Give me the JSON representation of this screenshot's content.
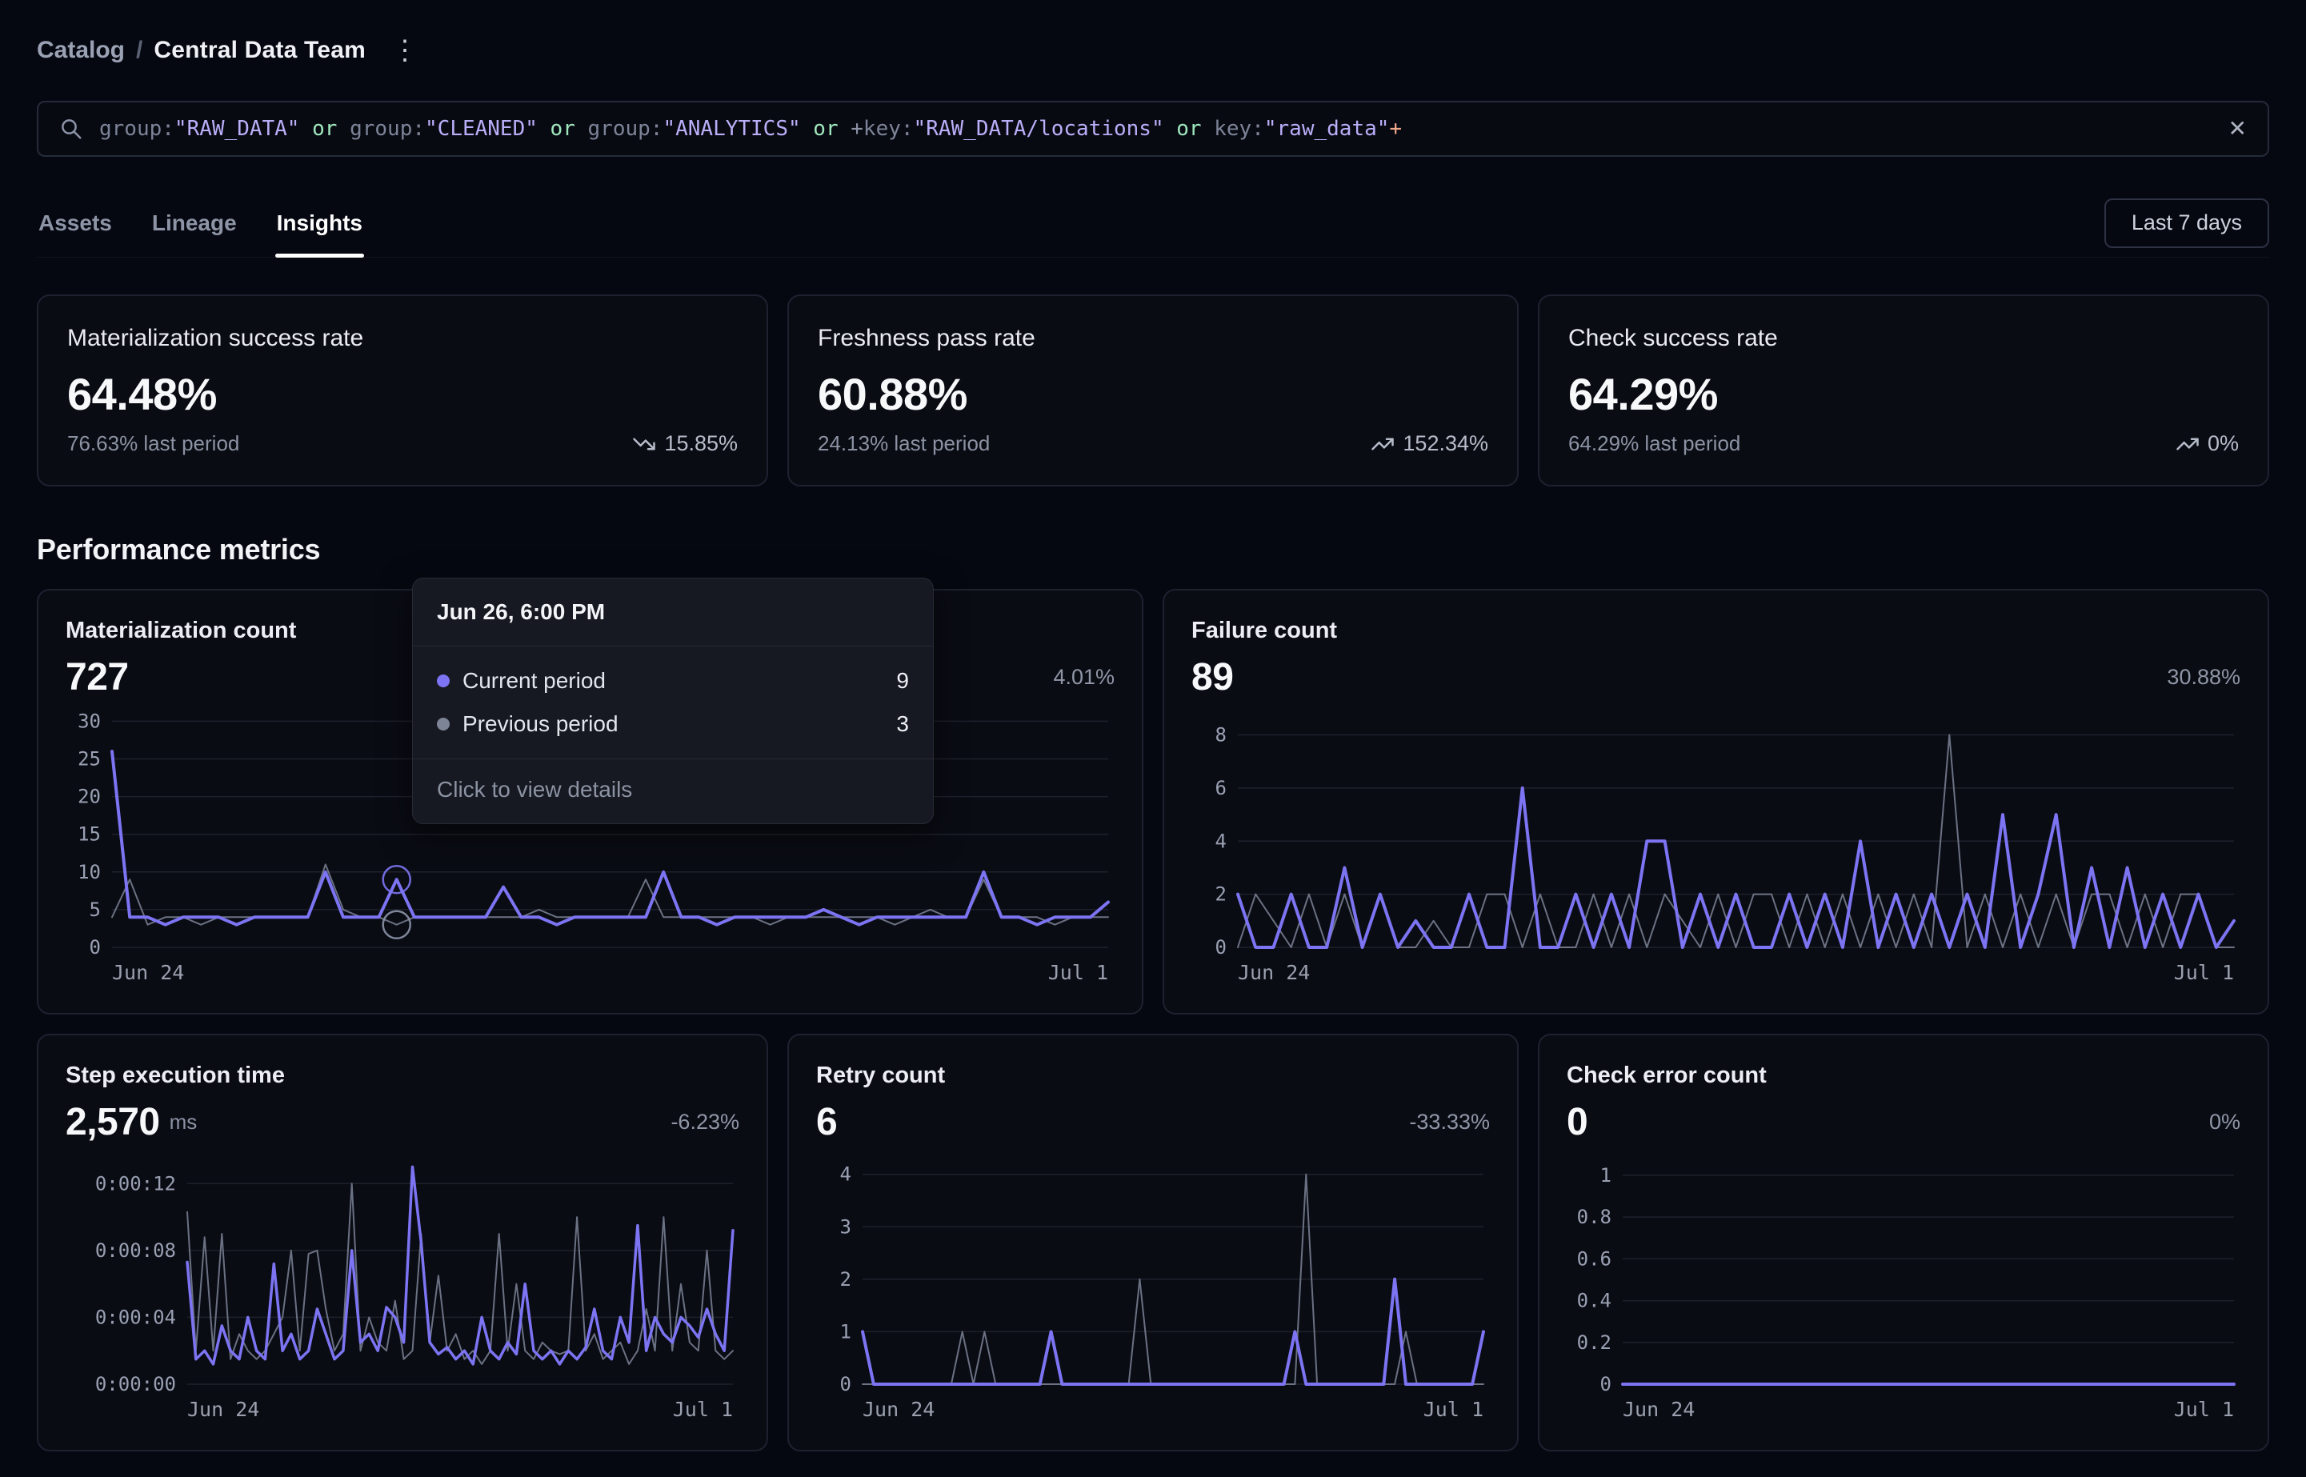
{
  "colors": {
    "bg": "#060811",
    "card": "#0a0c14",
    "card-border": "#1d2130",
    "purple": "#7c74f2",
    "grayline": "#8b93a7",
    "tooltip-bg": "#171922"
  },
  "icons": {
    "kebab": "⋮",
    "clear": "✕"
  },
  "breadcrumb": {
    "section": "Catalog",
    "separator": "/",
    "current": "Central Data Team"
  },
  "search": {
    "tokens": [
      {
        "text": "group:",
        "type": "field"
      },
      {
        "text": "\"RAW_DATA\"",
        "type": "string"
      },
      {
        "text": " or ",
        "type": "op"
      },
      {
        "text": "group:",
        "type": "field"
      },
      {
        "text": "\"CLEANED\"",
        "type": "string"
      },
      {
        "text": " or ",
        "type": "op"
      },
      {
        "text": "group:",
        "type": "field"
      },
      {
        "text": "\"ANALYTICS\"",
        "type": "string"
      },
      {
        "text": " or ",
        "type": "op"
      },
      {
        "text": "+",
        "type": "plus"
      },
      {
        "text": "key:",
        "type": "field"
      },
      {
        "text": "\"RAW_DATA/locations\"",
        "type": "string"
      },
      {
        "text": " or ",
        "type": "op"
      },
      {
        "text": "key:",
        "type": "field"
      },
      {
        "text": "\"raw_data\"",
        "type": "string"
      },
      {
        "text": "+",
        "type": "plus_end"
      }
    ]
  },
  "tabs": [
    {
      "label": "Assets",
      "active": false
    },
    {
      "label": "Lineage",
      "active": false
    },
    {
      "label": "Insights",
      "active": true
    }
  ],
  "time_range": {
    "label": "Last 7 days"
  },
  "kpi_cards": [
    {
      "title": "Materialization success rate",
      "value": "64.48%",
      "last_period": "76.63% last period",
      "delta": "15.85%",
      "trend": "down"
    },
    {
      "title": "Freshness pass rate",
      "value": "60.88%",
      "last_period": "24.13% last period",
      "delta": "152.34%",
      "trend": "up"
    },
    {
      "title": "Check success rate",
      "value": "64.29%",
      "last_period": "64.29% last period",
      "delta": "0%",
      "trend": "up"
    }
  ],
  "section_title": "Performance metrics",
  "tooltip": {
    "title": "Jun 26, 6:00 PM",
    "rows": [
      {
        "label": "Current period",
        "value": "9",
        "color": "#7c74f2"
      },
      {
        "label": "Previous period",
        "value": "3",
        "color": "#7d8496"
      }
    ],
    "footer": "Click to view details"
  },
  "chart_data": [
    {
      "id": "materialization_count",
      "type": "line",
      "title": "Materialization count",
      "value": "727",
      "unit": "",
      "delta": "4.01%",
      "xlabel": "",
      "ylabel": "",
      "x_range": [
        "Jun 24",
        "Jul 1"
      ],
      "ylim": [
        0,
        31
      ],
      "grid": true,
      "legend": "tooltip-only",
      "pad_left": 58,
      "marker_index": 16,
      "yticks": [
        {
          "v": 30,
          "label": "30"
        },
        {
          "v": 25,
          "label": "25"
        },
        {
          "v": 20,
          "label": "20"
        },
        {
          "v": 15,
          "label": "15"
        },
        {
          "v": 10,
          "label": "10"
        },
        {
          "v": 5,
          "label": "5"
        },
        {
          "v": 0,
          "label": "0"
        }
      ],
      "series": [
        {
          "name": "Current period",
          "color": "#7c74f2",
          "width": 4,
          "values": [
            26,
            4,
            4,
            3,
            4,
            4,
            4,
            3,
            4,
            4,
            4,
            4,
            10,
            4,
            4,
            4,
            9,
            4,
            4,
            4,
            4,
            4,
            8,
            4,
            4,
            3,
            4,
            4,
            4,
            4,
            4,
            10,
            4,
            4,
            3,
            4,
            4,
            4,
            4,
            4,
            5,
            4,
            3,
            4,
            4,
            4,
            4,
            4,
            4,
            10,
            4,
            4,
            3,
            4,
            4,
            4,
            6
          ]
        },
        {
          "name": "Previous period",
          "color": "#8b93a7",
          "width": 2,
          "opacity": 0.75,
          "values": [
            4,
            9,
            3,
            4,
            4,
            3,
            4,
            4,
            4,
            4,
            4,
            4,
            11,
            5,
            4,
            4,
            3,
            4,
            4,
            4,
            4,
            4,
            4,
            4,
            5,
            4,
            4,
            4,
            4,
            4,
            9,
            4,
            4,
            4,
            4,
            4,
            4,
            3,
            4,
            4,
            4,
            4,
            4,
            4,
            3,
            4,
            5,
            4,
            4,
            9,
            4,
            4,
            4,
            3,
            4,
            4,
            4
          ]
        }
      ]
    },
    {
      "id": "failure_count",
      "type": "line",
      "title": "Failure count",
      "value": "89",
      "unit": "",
      "delta": "30.88%",
      "xlabel": "",
      "ylabel": "",
      "x_range": [
        "Jun 24",
        "Jul 1"
      ],
      "ylim": [
        0,
        8.8
      ],
      "grid": true,
      "legend": "tooltip-only",
      "pad_left": 58,
      "yticks": [
        {
          "v": 8,
          "label": "8"
        },
        {
          "v": 6,
          "label": "6"
        },
        {
          "v": 4,
          "label": "4"
        },
        {
          "v": 2,
          "label": "2"
        },
        {
          "v": 0,
          "label": "0"
        }
      ],
      "series": [
        {
          "name": "Current period",
          "color": "#7c74f2",
          "width": 4,
          "values": [
            2,
            0,
            0,
            2,
            0,
            0,
            3,
            0,
            2,
            0,
            1,
            0,
            0,
            2,
            0,
            0,
            6,
            0,
            0,
            2,
            0,
            2,
            0,
            4,
            4,
            0,
            2,
            0,
            2,
            0,
            0,
            2,
            0,
            2,
            0,
            4,
            0,
            2,
            0,
            2,
            0,
            2,
            0,
            5,
            0,
            2,
            5,
            0,
            3,
            0,
            3,
            0,
            2,
            0,
            2,
            0,
            1
          ]
        },
        {
          "name": "Previous period",
          "color": "#8b93a7",
          "width": 2,
          "opacity": 0.75,
          "values": [
            0,
            2,
            1,
            0,
            2,
            0,
            2,
            0,
            2,
            0,
            0,
            1,
            0,
            0,
            2,
            2,
            0,
            2,
            0,
            0,
            2,
            0,
            2,
            0,
            2,
            1,
            0,
            2,
            0,
            2,
            2,
            0,
            2,
            0,
            2,
            0,
            2,
            0,
            2,
            0,
            8,
            0,
            2,
            0,
            2,
            0,
            2,
            0,
            2,
            2,
            0,
            2,
            0,
            2,
            2,
            0,
            0
          ]
        }
      ]
    },
    {
      "id": "step_execution_time",
      "type": "line",
      "title": "Step execution time",
      "value": "2,570",
      "unit": "ms",
      "delta": "-6.23%",
      "xlabel": "",
      "ylabel": "",
      "x_range": [
        "Jun 24",
        "Jul 1"
      ],
      "ylim": [
        0,
        13.5
      ],
      "grid": true,
      "legend": "tooltip-only",
      "pad_left": 152,
      "yticks": [
        {
          "v": 12,
          "label": "0:00:12"
        },
        {
          "v": 8,
          "label": "0:00:08"
        },
        {
          "v": 4,
          "label": "0:00:04"
        },
        {
          "v": 0,
          "label": "0:00:00"
        }
      ],
      "series": [
        {
          "name": "Current period",
          "color": "#7c74f2",
          "width": 3.5,
          "values": [
            7.3,
            1.5,
            2,
            1.2,
            3.5,
            2,
            1.5,
            4,
            2,
            1.5,
            7.2,
            2,
            3,
            1.5,
            2,
            4.5,
            3,
            1.5,
            2,
            8,
            2.5,
            3,
            2,
            4.6,
            4,
            2.5,
            13,
            8.5,
            2.5,
            1.8,
            2.2,
            1.5,
            2,
            1.2,
            4,
            2,
            1.5,
            2.5,
            1.8,
            6,
            2,
            1.5,
            2,
            1.2,
            2,
            1.5,
            2.2,
            4.5,
            2,
            1.5,
            4,
            2.5,
            9.5,
            2,
            4,
            3,
            2.5,
            4,
            3.5,
            2.8,
            4.5,
            3,
            2,
            9.2
          ]
        },
        {
          "name": "Previous period",
          "color": "#8b93a7",
          "width": 2,
          "opacity": 0.75,
          "values": [
            10.3,
            2,
            8.8,
            2,
            9,
            1.5,
            3,
            2,
            1.5,
            2,
            3,
            4,
            8,
            2,
            7.8,
            8,
            4.5,
            2,
            3,
            12,
            2,
            4,
            2.5,
            2,
            5,
            1.5,
            2,
            9,
            2.5,
            6.5,
            2,
            3,
            1.5,
            2,
            1.2,
            2,
            9,
            2,
            6,
            2,
            1.5,
            2.5,
            2,
            1.8,
            2,
            10,
            2,
            3,
            1.5,
            2,
            2.5,
            1.2,
            2,
            4.5,
            2,
            10,
            2,
            6,
            2.5,
            2,
            8,
            2,
            1.5,
            2
          ]
        }
      ]
    },
    {
      "id": "retry_count",
      "type": "line",
      "title": "Retry count",
      "value": "6",
      "unit": "",
      "delta": "-33.33%",
      "xlabel": "",
      "ylabel": "",
      "x_range": [
        "Jun 24",
        "Jul 1"
      ],
      "ylim": [
        0,
        4.3
      ],
      "grid": true,
      "legend": "tooltip-only",
      "pad_left": 58,
      "yticks": [
        {
          "v": 4,
          "label": "4"
        },
        {
          "v": 3,
          "label": "3"
        },
        {
          "v": 2,
          "label": "2"
        },
        {
          "v": 1,
          "label": "1"
        },
        {
          "v": 0,
          "label": "0"
        }
      ],
      "series": [
        {
          "name": "Current period",
          "color": "#7c74f2",
          "width": 4,
          "values": [
            1,
            0,
            0,
            0,
            0,
            0,
            0,
            0,
            0,
            0,
            0,
            0,
            0,
            0,
            0,
            0,
            0,
            1,
            0,
            0,
            0,
            0,
            0,
            0,
            0,
            0,
            0,
            0,
            0,
            0,
            0,
            0,
            0,
            0,
            0,
            0,
            0,
            0,
            0,
            1,
            0,
            0,
            0,
            0,
            0,
            0,
            0,
            0,
            2,
            0,
            0,
            0,
            0,
            0,
            0,
            0,
            1
          ]
        },
        {
          "name": "Previous period",
          "color": "#8b93a7",
          "width": 2,
          "opacity": 0.75,
          "values": [
            0,
            0,
            0,
            0,
            0,
            0,
            0,
            0,
            0,
            1,
            0,
            1,
            0,
            0,
            0,
            0,
            0,
            0,
            0,
            0,
            0,
            0,
            0,
            0,
            0,
            2,
            0,
            0,
            0,
            0,
            0,
            0,
            0,
            0,
            0,
            0,
            0,
            0,
            0,
            0,
            4,
            0,
            0,
            0,
            0,
            0,
            0,
            0,
            0,
            1,
            0,
            0,
            0,
            0,
            0,
            0,
            0
          ]
        }
      ]
    },
    {
      "id": "check_error_count",
      "type": "line",
      "title": "Check error count",
      "value": "0",
      "unit": "",
      "delta": "0%",
      "xlabel": "",
      "ylabel": "",
      "x_range": [
        "Jun 24",
        "Jul 1"
      ],
      "ylim": [
        0,
        1.08
      ],
      "grid": true,
      "legend": "tooltip-only",
      "pad_left": 70,
      "yticks": [
        {
          "v": 1,
          "label": "1"
        },
        {
          "v": 0.8,
          "label": "0.8"
        },
        {
          "v": 0.6,
          "label": "0.6"
        },
        {
          "v": 0.4,
          "label": "0.4"
        },
        {
          "v": 0.2,
          "label": "0.2"
        },
        {
          "v": 0,
          "label": "0"
        }
      ],
      "series": [
        {
          "name": "Current period",
          "color": "#7c74f2",
          "width": 4,
          "values": [
            0,
            0,
            0,
            0,
            0,
            0,
            0,
            0,
            0,
            0,
            0,
            0,
            0,
            0,
            0,
            0,
            0,
            0,
            0,
            0,
            0,
            0,
            0,
            0,
            0,
            0,
            0,
            0,
            0,
            0,
            0,
            0,
            0,
            0,
            0,
            0,
            0,
            0,
            0,
            0,
            0,
            0,
            0,
            0,
            0,
            0,
            0,
            0,
            0,
            0,
            0,
            0,
            0,
            0,
            0,
            0,
            0
          ]
        },
        {
          "name": "Previous period",
          "color": "#8b93a7",
          "width": 2,
          "opacity": 0.75,
          "values": [
            0,
            0,
            0,
            0,
            0,
            0,
            0,
            0,
            0,
            0,
            0,
            0,
            0,
            0,
            0,
            0,
            0,
            0,
            0,
            0,
            0,
            0,
            0,
            0,
            0,
            0,
            0,
            0,
            0,
            0,
            0,
            0,
            0,
            0,
            0,
            0,
            0,
            0,
            0,
            0,
            0,
            0,
            0,
            0,
            0,
            0,
            0,
            0,
            0,
            0,
            0,
            0,
            0,
            0,
            0,
            0,
            0
          ]
        }
      ]
    }
  ]
}
